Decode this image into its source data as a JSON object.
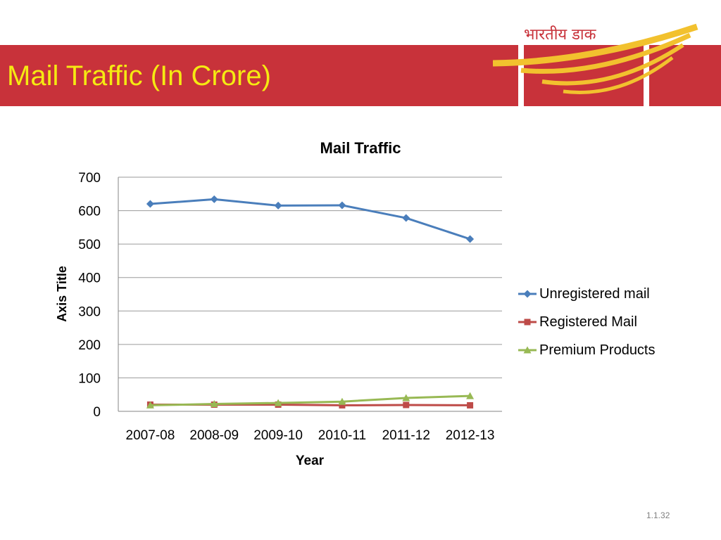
{
  "slide": {
    "title": "Mail Traffic (In Crore)",
    "logo_text": "भारतीय डाक",
    "page_number": "1.1.32"
  },
  "colors": {
    "banner": "#c8323a",
    "title_text": "#f5ea12",
    "logo_gold": "#f2c12e"
  },
  "chart_data": {
    "type": "line",
    "title": "Mail Traffic",
    "xlabel": "Year",
    "ylabel": "Axis Title",
    "categories": [
      "2007-08",
      "2008-09",
      "2009-10",
      "2010-11",
      "2011-12",
      "2012-13"
    ],
    "ylim": [
      0,
      700
    ],
    "yticks": [
      0,
      100,
      200,
      300,
      400,
      500,
      600,
      700
    ],
    "grid": true,
    "legend_position": "right",
    "series": [
      {
        "name": "Unregistered mail",
        "values": [
          620,
          634,
          615,
          616,
          578,
          515
        ],
        "color": "#4a7ebb",
        "marker": "diamond"
      },
      {
        "name": "Registered Mail",
        "values": [
          20,
          20,
          20,
          18,
          19,
          18
        ],
        "color": "#be4b48",
        "marker": "square"
      },
      {
        "name": "Premium Products",
        "values": [
          18,
          22,
          25,
          29,
          40,
          46
        ],
        "color": "#98b954",
        "marker": "triangle"
      }
    ]
  }
}
